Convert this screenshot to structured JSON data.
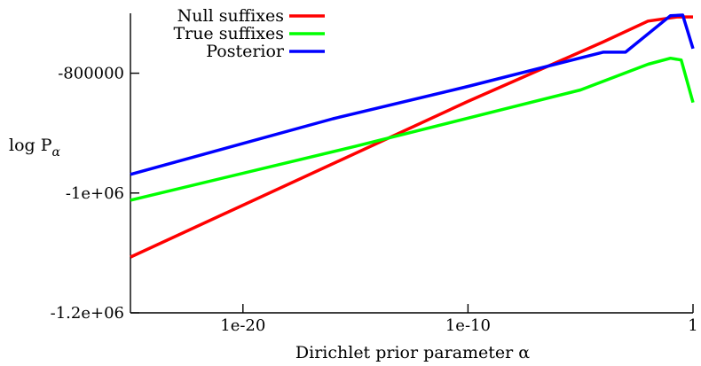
{
  "chart_data": {
    "type": "line",
    "title": "",
    "xlabel": "Dirichlet prior parameter α",
    "ylabel_main": "log P",
    "ylabel_sub": "α",
    "x_scale": "log",
    "xlim": [
      1e-25,
      1
    ],
    "ylim": [
      -1200000,
      -700000
    ],
    "xticks": [
      {
        "value": 1e-20,
        "label": "1e-20"
      },
      {
        "value": 1e-10,
        "label": "1e-10"
      },
      {
        "value": 1,
        "label": "1"
      }
    ],
    "yticks": [
      {
        "value": -800000,
        "label": "-800000"
      },
      {
        "value": -1000000,
        "label": "-1e+06"
      },
      {
        "value": -1200000,
        "label": "-1.2e+06"
      }
    ],
    "grid": false,
    "legend_position": "top-left",
    "series": [
      {
        "name": "Null suffixes",
        "color": "#ff0000",
        "points": [
          [
            1e-25,
            -1107000
          ],
          [
            1e-10,
            -847000
          ],
          [
            0.0001,
            -748000
          ],
          [
            0.01,
            -713000
          ],
          [
            0.2,
            -706000
          ],
          [
            1,
            -706000
          ]
        ]
      },
      {
        "name": "True suffixes",
        "color": "#00ff00",
        "points": [
          [
            1e-25,
            -1012000
          ],
          [
            1e-15,
            -922000
          ],
          [
            1e-05,
            -828000
          ],
          [
            0.01,
            -785000
          ],
          [
            0.1,
            -775000
          ],
          [
            0.3,
            -778000
          ],
          [
            1,
            -849000
          ]
        ]
      },
      {
        "name": "Posterior",
        "color": "#0000ff",
        "points": [
          [
            1e-25,
            -969000
          ],
          [
            1e-16,
            -876000
          ],
          [
            1e-10,
            -822000
          ],
          [
            0.0001,
            -765000
          ],
          [
            0.001,
            -765000
          ],
          [
            0.1,
            -704000
          ],
          [
            0.35,
            -703000
          ],
          [
            1,
            -759000
          ]
        ]
      }
    ]
  }
}
